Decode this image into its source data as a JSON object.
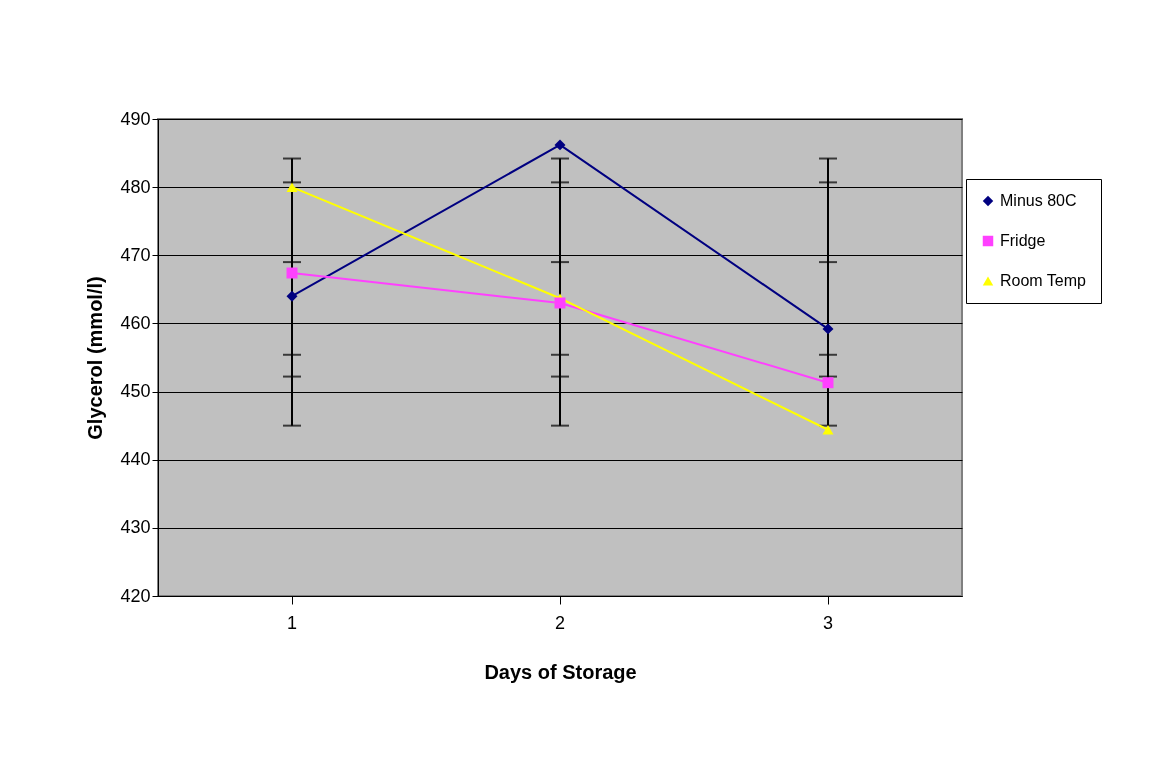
{
  "chart_data": {
    "type": "line",
    "xlabel": "Days of Storage",
    "ylabel": "Glycerol (mmol/l)",
    "categories": [
      "1",
      "2",
      "3"
    ],
    "ylim": [
      420,
      490
    ],
    "yticks": [
      420,
      430,
      440,
      450,
      460,
      470,
      480,
      490
    ],
    "grid": "y",
    "legend": "right",
    "series": [
      {
        "name": "Minus 80C",
        "color": "#000080",
        "marker": "diamond",
        "values": [
          464.0,
          486.2,
          459.2
        ],
        "errors": [
          [
            445.0,
            484.2
          ],
          [
            445.0,
            484.2
          ],
          [
            445.0,
            484.2
          ]
        ]
      },
      {
        "name": "Fridge",
        "color": "#ff40ff",
        "marker": "square",
        "values": [
          467.4,
          463.0,
          451.3
        ],
        "errors": [
          [
            452.2,
            480.7
          ],
          [
            452.2,
            480.7
          ],
          [
            452.2,
            480.7
          ]
        ]
      },
      {
        "name": "Room Temp",
        "color": "#ffff00",
        "marker": "triangle",
        "values": [
          480.0,
          463.7,
          444.4
        ],
        "errors": [
          [
            455.4,
            469.0
          ],
          [
            455.4,
            469.0
          ],
          [
            455.4,
            469.0
          ]
        ]
      }
    ]
  }
}
